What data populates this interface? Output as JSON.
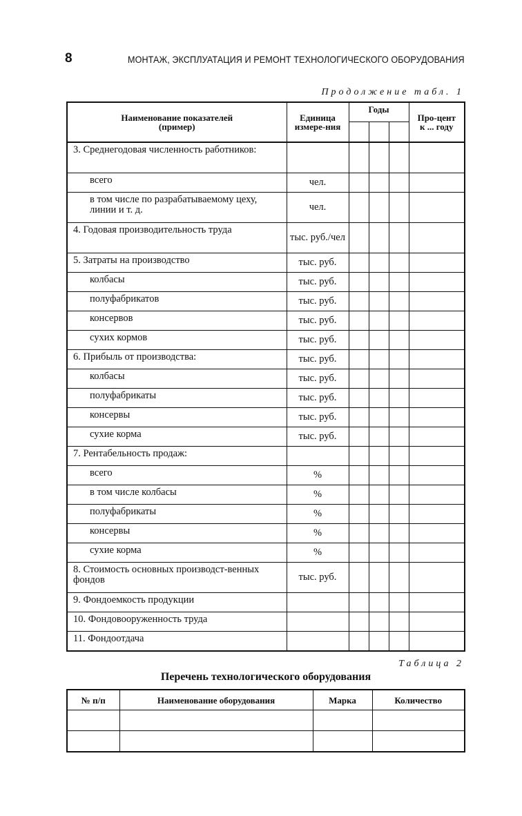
{
  "header": {
    "page_number": "8",
    "running_title": "МОНТАЖ, ЭКСПЛУАТАЦИЯ И РЕМОНТ ТЕХНОЛОГИЧЕСКОГО ОБОРУДОВАНИЯ"
  },
  "table1": {
    "caption": "Продолжение табл. 1",
    "headers": {
      "name": "Наименование показателей",
      "name_sub": "(пример)",
      "unit": "Единица измере-ния",
      "years": "Годы",
      "percent": "Про-цент к ... году"
    },
    "rows": [
      {
        "name": "3. Среднегодовая численность работников:",
        "unit": "",
        "indent": false,
        "lines": 2
      },
      {
        "name": "всего",
        "unit": "чел.",
        "indent": true,
        "lines": 1
      },
      {
        "name": "в том числе по разрабатываемому цеху, линии и т. д.",
        "unit": "чел.",
        "indent": true,
        "lines": 2
      },
      {
        "name": "4. Годовая производительность труда",
        "unit": "тыс. руб./чел",
        "indent": false,
        "lines": 2
      },
      {
        "name": "5. Затраты на производство",
        "unit": "тыс. руб.",
        "indent": false,
        "lines": 1
      },
      {
        "name": "колбасы",
        "unit": "тыс. руб.",
        "indent": true,
        "lines": 1
      },
      {
        "name": "полуфабрикатов",
        "unit": "тыс. руб.",
        "indent": true,
        "lines": 1
      },
      {
        "name": "консервов",
        "unit": "тыс. руб.",
        "indent": true,
        "lines": 1
      },
      {
        "name": "сухих кормов",
        "unit": "тыс. руб.",
        "indent": true,
        "lines": 1
      },
      {
        "name": "6. Прибыль от производства:",
        "unit": "тыс. руб.",
        "indent": false,
        "lines": 1
      },
      {
        "name": "колбасы",
        "unit": "тыс. руб.",
        "indent": true,
        "lines": 1
      },
      {
        "name": "полуфабрикаты",
        "unit": "тыс. руб.",
        "indent": true,
        "lines": 1
      },
      {
        "name": "консервы",
        "unit": "тыс. руб.",
        "indent": true,
        "lines": 1
      },
      {
        "name": "сухие корма",
        "unit": "тыс. руб.",
        "indent": true,
        "lines": 1
      },
      {
        "name": "7. Рентабельность продаж:",
        "unit": "",
        "indent": false,
        "lines": 1
      },
      {
        "name": "всего",
        "unit": "%",
        "indent": true,
        "lines": 1
      },
      {
        "name": "в том числе колбасы",
        "unit": "%",
        "indent": true,
        "lines": 1
      },
      {
        "name": "полуфабрикаты",
        "unit": "%",
        "indent": true,
        "lines": 1
      },
      {
        "name": "консервы",
        "unit": "%",
        "indent": true,
        "lines": 1
      },
      {
        "name": "сухие корма",
        "unit": "%",
        "indent": true,
        "lines": 1
      },
      {
        "name": "8. Стоимость основных производст-венных фондов",
        "unit": "тыс. руб.",
        "indent": false,
        "lines": 2
      },
      {
        "name": "9. Фондоемкость продукции",
        "unit": "",
        "indent": false,
        "lines": 1
      },
      {
        "name": "10. Фондовооруженность труда",
        "unit": "",
        "indent": false,
        "lines": 1
      },
      {
        "name": "11. Фондоотдача",
        "unit": "",
        "indent": false,
        "lines": 1
      }
    ]
  },
  "table2": {
    "caption": "Таблица 2",
    "title": "Перечень технологического оборудования",
    "headers": [
      "№ п/п",
      "Наименование оборудования",
      "Марка",
      "Количество"
    ]
  }
}
